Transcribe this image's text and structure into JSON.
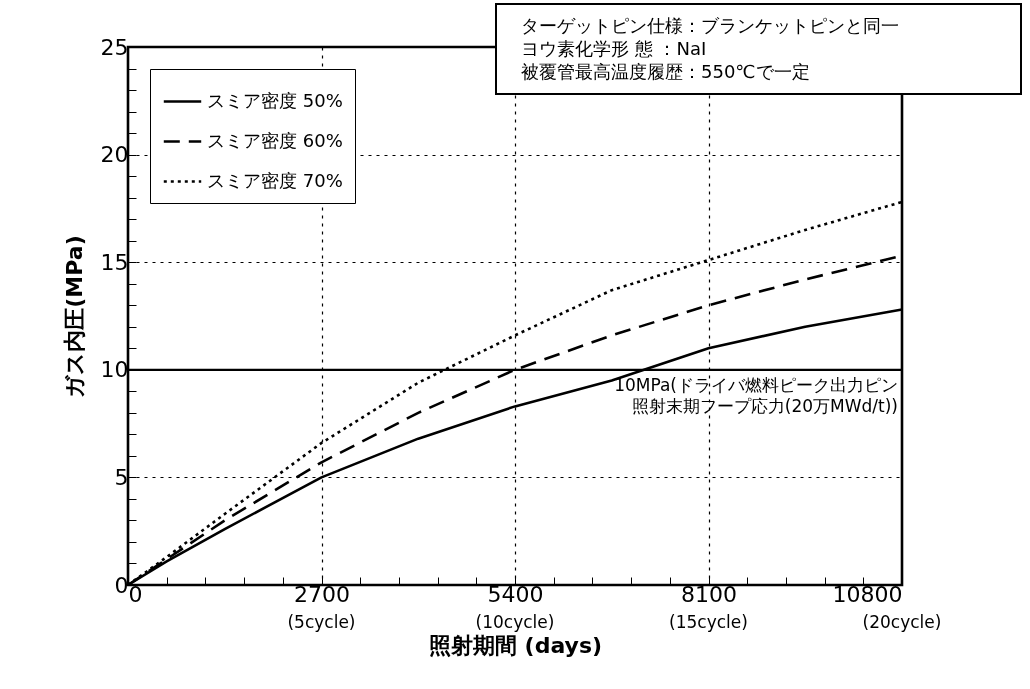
{
  "chart_data": {
    "type": "line",
    "xlabel": "照射期間 (days)",
    "ylabel": "ガス内圧(MPa)",
    "x": [
      0,
      540,
      1350,
      2700,
      4050,
      5400,
      6750,
      8100,
      9450,
      10800
    ],
    "series": [
      {
        "name": "スミア密度 50%",
        "color": "#000000",
        "line_style": "solid",
        "values": [
          0,
          1.1,
          2.6,
          5.0,
          6.8,
          8.3,
          9.5,
          11.0,
          12.0,
          12.8
        ]
      },
      {
        "name": "スミア密度 60%",
        "color": "#000000",
        "line_style": "dashed",
        "values": [
          0,
          1.2,
          3.0,
          5.7,
          8.0,
          10.0,
          11.6,
          13.0,
          14.2,
          15.3
        ]
      },
      {
        "name": "スミア密度 70%",
        "color": "#000000",
        "line_style": "dotted",
        "values": [
          0,
          1.3,
          3.3,
          6.6,
          9.4,
          11.6,
          13.7,
          15.1,
          16.5,
          17.8
        ]
      }
    ],
    "xlim": [
      0,
      10800
    ],
    "xticks": [
      0,
      {
        "value": 540,
        "label": null
      },
      {
        "value": 1080,
        "label": null
      },
      {
        "value": 1620,
        "label": null
      },
      {
        "value": 2160,
        "label": null
      },
      2700,
      {
        "value": 3240,
        "label": null
      },
      {
        "value": 3780,
        "label": null
      },
      {
        "value": 4320,
        "label": null
      },
      {
        "value": 4860,
        "label": null
      },
      5400,
      {
        "value": 5940,
        "label": null
      },
      {
        "value": 6480,
        "label": null
      },
      {
        "value": 7020,
        "label": null
      },
      {
        "value": 7560,
        "label": null
      },
      8100,
      {
        "value": 8640,
        "label": null
      },
      {
        "value": 9180,
        "label": null
      },
      {
        "value": 9720,
        "label": null
      },
      {
        "value": 10260,
        "label": null
      },
      10800
    ],
    "ylim": [
      0,
      25
    ],
    "yticks": [
      0,
      {
        "value": 1,
        "label": null
      },
      {
        "value": 2,
        "label": null
      },
      {
        "value": 3,
        "label": null
      },
      {
        "value": 4,
        "label": null
      },
      5,
      {
        "value": 6,
        "label": null
      },
      {
        "value": 7,
        "label": null
      },
      {
        "value": 8,
        "label": null
      },
      {
        "value": 9,
        "label": null
      },
      10,
      {
        "value": 11,
        "label": null
      },
      {
        "value": 12,
        "label": null
      },
      {
        "value": 13,
        "label": null
      },
      {
        "value": 14,
        "label": null
      },
      15,
      {
        "value": 16,
        "label": null
      },
      {
        "value": 17,
        "label": null
      },
      {
        "value": 18,
        "label": null
      },
      {
        "value": 19,
        "label": null
      },
      20,
      {
        "value": 21,
        "label": null
      },
      {
        "value": 22,
        "label": null
      },
      {
        "value": 23,
        "label": null
      },
      {
        "value": 24,
        "label": null
      },
      25
    ],
    "ref_lines": [
      {
        "axis": "y",
        "value": 10,
        "label": "10MPa(ドライバ燃料ピーク出力ピン照射末期フープ応力(20万MWd/t))",
        "color": "#000000",
        "line_style": "solid"
      }
    ],
    "annotations": [
      "ターゲットピン仕様：ブランケットピンと同一",
      "ヨウ素化学形 態 ：NaI",
      "被覆管最高温度履歴：550℃で一定",
      "(5cycle)",
      "(10cycle)",
      "(15cycle)",
      "(20cycle)"
    ],
    "grid": true,
    "legend": "top left",
    "marker": "none"
  }
}
